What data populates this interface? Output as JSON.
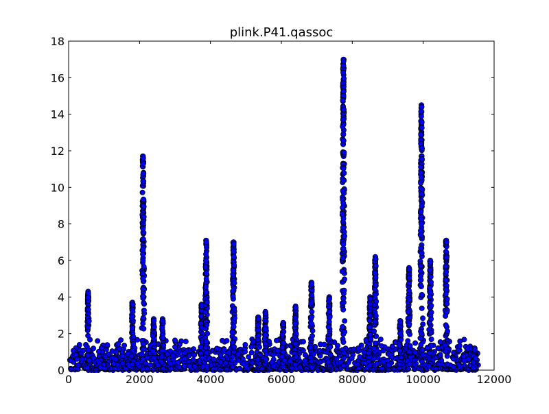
{
  "chart_data": {
    "type": "scatter",
    "title": "plink.P41.qassoc",
    "xlabel": "",
    "ylabel": "",
    "xlim": [
      0,
      12000
    ],
    "ylim": [
      0,
      18
    ],
    "x_ticks": [
      "0",
      "2000",
      "4000",
      "6000",
      "8000",
      "10000",
      "12000"
    ],
    "y_ticks": [
      "0",
      "2",
      "4",
      "6",
      "8",
      "10",
      "12",
      "14",
      "16",
      "18"
    ],
    "grid": false,
    "legend": "none",
    "marker_color": "#0000ff",
    "marker_edge": "#000000",
    "peaks": [
      {
        "x": 550,
        "max_y": 4.3
      },
      {
        "x": 1800,
        "max_y": 3.7
      },
      {
        "x": 2100,
        "max_y": 11.7
      },
      {
        "x": 2400,
        "max_y": 2.8
      },
      {
        "x": 2650,
        "max_y": 2.8
      },
      {
        "x": 3750,
        "max_y": 3.6
      },
      {
        "x": 3880,
        "max_y": 7.1
      },
      {
        "x": 4650,
        "max_y": 7.0
      },
      {
        "x": 5350,
        "max_y": 2.9
      },
      {
        "x": 5550,
        "max_y": 3.2
      },
      {
        "x": 6050,
        "max_y": 2.6
      },
      {
        "x": 6400,
        "max_y": 3.5
      },
      {
        "x": 6850,
        "max_y": 4.8
      },
      {
        "x": 7350,
        "max_y": 4.0
      },
      {
        "x": 7750,
        "max_y": 17.0
      },
      {
        "x": 8500,
        "max_y": 4.0
      },
      {
        "x": 8650,
        "max_y": 6.2
      },
      {
        "x": 9350,
        "max_y": 2.7
      },
      {
        "x": 9600,
        "max_y": 5.6
      },
      {
        "x": 9950,
        "max_y": 14.5
      },
      {
        "x": 10200,
        "max_y": 6.0
      },
      {
        "x": 10650,
        "max_y": 7.1
      },
      {
        "x": 11450,
        "max_y": 1.2
      }
    ]
  }
}
